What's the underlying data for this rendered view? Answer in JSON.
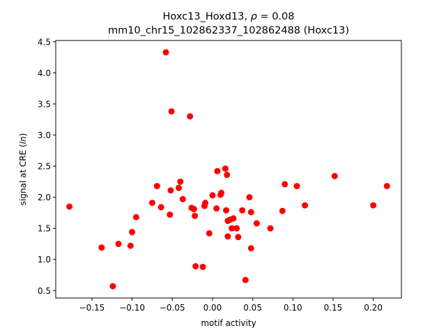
{
  "chart_data": {
    "type": "scatter",
    "title_line1_prefix": "Hoxc13_Hoxd13, ",
    "title_line1_rho": "ρ",
    "title_line1_suffix": " = 0.08",
    "title_line2": "mm10_chr15_102862337_102862488 (Hoxc13)",
    "xlabel": "motif activity",
    "ylabel_prefix": "signal at CRE (",
    "ylabel_italic": "ln",
    "ylabel_suffix": ")",
    "xlim": [
      -0.195,
      0.235
    ],
    "ylim": [
      0.38,
      4.52
    ],
    "xticks": [
      -0.15,
      -0.1,
      -0.05,
      0.0,
      0.05,
      0.1,
      0.15,
      0.2
    ],
    "xtick_labels": [
      "−0.15",
      "−0.10",
      "−0.05",
      "0.00",
      "0.05",
      "0.10",
      "0.15",
      "0.20"
    ],
    "yticks": [
      0.5,
      1.0,
      1.5,
      2.0,
      2.5,
      3.0,
      3.5,
      4.0,
      4.5
    ],
    "ytick_labels": [
      "0.5",
      "1.0",
      "1.5",
      "2.0",
      "2.5",
      "3.0",
      "3.5",
      "4.0",
      "4.5"
    ],
    "grid": false,
    "marker_color": "#ff0000",
    "points": [
      {
        "x": -0.178,
        "y": 1.85
      },
      {
        "x": -0.138,
        "y": 1.19
      },
      {
        "x": -0.124,
        "y": 0.57
      },
      {
        "x": -0.117,
        "y": 1.25
      },
      {
        "x": -0.102,
        "y": 1.22
      },
      {
        "x": -0.1,
        "y": 1.44
      },
      {
        "x": -0.095,
        "y": 1.68
      },
      {
        "x": -0.075,
        "y": 1.91
      },
      {
        "x": -0.069,
        "y": 2.18
      },
      {
        "x": -0.064,
        "y": 1.84
      },
      {
        "x": -0.058,
        "y": 4.33
      },
      {
        "x": -0.053,
        "y": 1.72
      },
      {
        "x": -0.052,
        "y": 2.11
      },
      {
        "x": -0.051,
        "y": 3.38
      },
      {
        "x": -0.042,
        "y": 2.15
      },
      {
        "x": -0.04,
        "y": 2.25
      },
      {
        "x": -0.037,
        "y": 1.97
      },
      {
        "x": -0.028,
        "y": 3.3
      },
      {
        "x": -0.026,
        "y": 1.83
      },
      {
        "x": -0.023,
        "y": 1.81
      },
      {
        "x": -0.022,
        "y": 1.7
      },
      {
        "x": -0.021,
        "y": 0.89
      },
      {
        "x": -0.012,
        "y": 0.88
      },
      {
        "x": -0.01,
        "y": 1.86
      },
      {
        "x": -0.009,
        "y": 1.91
      },
      {
        "x": -0.004,
        "y": 1.42
      },
      {
        "x": 0.0,
        "y": 2.03
      },
      {
        "x": 0.005,
        "y": 1.82
      },
      {
        "x": 0.006,
        "y": 2.42
      },
      {
        "x": 0.01,
        "y": 2.04
      },
      {
        "x": 0.011,
        "y": 2.07
      },
      {
        "x": 0.016,
        "y": 2.46
      },
      {
        "x": 0.017,
        "y": 1.79
      },
      {
        "x": 0.018,
        "y": 2.36
      },
      {
        "x": 0.019,
        "y": 1.62
      },
      {
        "x": 0.019,
        "y": 1.37
      },
      {
        "x": 0.022,
        "y": 1.64
      },
      {
        "x": 0.024,
        "y": 1.5
      },
      {
        "x": 0.026,
        "y": 1.66
      },
      {
        "x": 0.03,
        "y": 1.5
      },
      {
        "x": 0.032,
        "y": 1.36
      },
      {
        "x": 0.037,
        "y": 1.79
      },
      {
        "x": 0.041,
        "y": 0.67
      },
      {
        "x": 0.046,
        "y": 2.0
      },
      {
        "x": 0.048,
        "y": 1.76
      },
      {
        "x": 0.048,
        "y": 1.18
      },
      {
        "x": 0.055,
        "y": 1.58
      },
      {
        "x": 0.072,
        "y": 1.5
      },
      {
        "x": 0.087,
        "y": 1.78
      },
      {
        "x": 0.09,
        "y": 2.21
      },
      {
        "x": 0.105,
        "y": 2.18
      },
      {
        "x": 0.115,
        "y": 1.87
      },
      {
        "x": 0.152,
        "y": 2.34
      },
      {
        "x": 0.2,
        "y": 1.87
      },
      {
        "x": 0.217,
        "y": 2.18
      }
    ]
  }
}
